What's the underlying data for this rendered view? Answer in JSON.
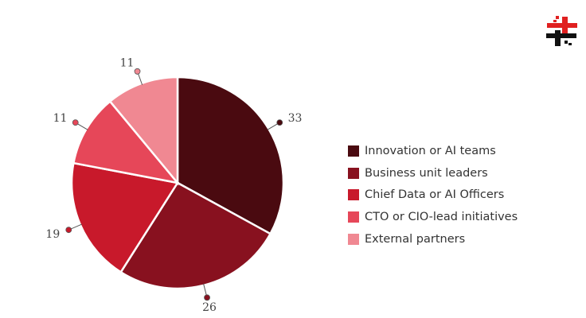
{
  "chart_data": {
    "type": "pie",
    "categories": [
      "Innovation or AI teams",
      "Business unit leaders",
      "Chief Data or AI Officers",
      "CTO or CIO-lead initiatives",
      "External partners"
    ],
    "values": [
      33,
      26,
      19,
      11,
      11
    ],
    "colors": [
      "#4a0a10",
      "#88111f",
      "#c8192b",
      "#e64759",
      "#f08892"
    ],
    "data_labels": [
      "33",
      "26",
      "19",
      "11",
      "11"
    ],
    "legend_position": "right",
    "start_angle": "top, clockwise"
  },
  "legend": {
    "items": [
      {
        "label": "Innovation or AI teams"
      },
      {
        "label": "Business unit leaders"
      },
      {
        "label": "Chief Data or AI Officers"
      },
      {
        "label": "CTO or CIO-lead initiatives"
      },
      {
        "label": "External partners"
      }
    ]
  },
  "logo": {
    "name": "brand-logo",
    "colors": [
      "#e02020",
      "#111111"
    ]
  }
}
